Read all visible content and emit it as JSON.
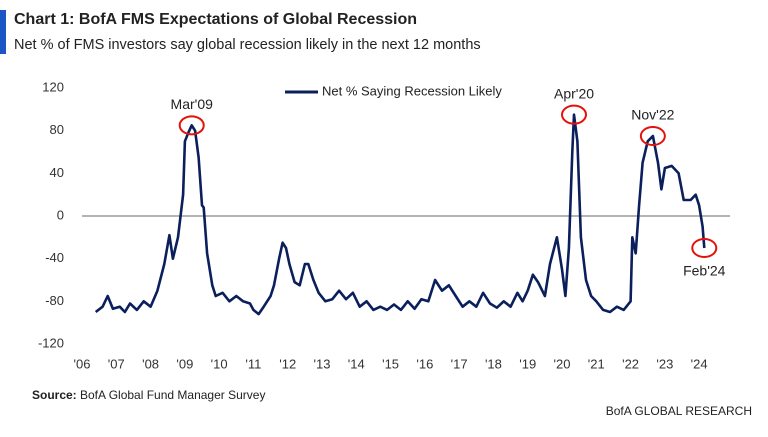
{
  "chart_data": {
    "type": "line",
    "title": "Chart 1: BofA FMS Expectations of Global Recession",
    "subtitle": "Net % of FMS investors say global recession likely in the next 12 months",
    "source_label": "Source:",
    "source": "BofA Global Fund Manager Survey",
    "footer": "BofA GLOBAL RESEARCH",
    "x": [
      2006.4,
      2006.6,
      2006.75,
      2006.9,
      2007.1,
      2007.25,
      2007.4,
      2007.6,
      2007.8,
      2008.0,
      2008.2,
      2008.4,
      2008.55,
      2008.65,
      2008.8,
      2008.95,
      2009.0,
      2009.1,
      2009.2,
      2009.3,
      2009.4,
      2009.5,
      2009.55,
      2009.65,
      2009.8,
      2009.9,
      2010.1,
      2010.3,
      2010.5,
      2010.7,
      2010.9,
      2011.0,
      2011.15,
      2011.3,
      2011.5,
      2011.6,
      2011.75,
      2011.85,
      2011.95,
      2012.05,
      2012.2,
      2012.35,
      2012.5,
      2012.6,
      2012.75,
      2012.9,
      2013.1,
      2013.3,
      2013.5,
      2013.7,
      2013.9,
      2014.1,
      2014.3,
      2014.5,
      2014.7,
      2014.9,
      2015.1,
      2015.3,
      2015.5,
      2015.7,
      2015.9,
      2016.1,
      2016.3,
      2016.5,
      2016.7,
      2016.9,
      2017.1,
      2017.3,
      2017.5,
      2017.7,
      2017.9,
      2018.1,
      2018.3,
      2018.5,
      2018.7,
      2018.85,
      2019.0,
      2019.15,
      2019.3,
      2019.5,
      2019.65,
      2019.85,
      2020.0,
      2020.1,
      2020.2,
      2020.3,
      2020.35,
      2020.45,
      2020.55,
      2020.7,
      2020.85,
      2021.0,
      2021.2,
      2021.4,
      2021.6,
      2021.8,
      2022.0,
      2022.05,
      2022.15,
      2022.25,
      2022.35,
      2022.5,
      2022.65,
      2022.8,
      2022.9,
      2023.0,
      2023.2,
      2023.4,
      2023.55,
      2023.75,
      2023.9,
      2024.0,
      2024.1,
      2024.15
    ],
    "series": [
      {
        "name": "Net % Saying Recession Likely",
        "color": "#0a1f5c",
        "values": [
          -90,
          -85,
          -75,
          -87,
          -85,
          -90,
          -82,
          -88,
          -80,
          -85,
          -70,
          -45,
          -18,
          -40,
          -20,
          20,
          70,
          78,
          85,
          80,
          55,
          10,
          8,
          -35,
          -65,
          -75,
          -72,
          -80,
          -75,
          -80,
          -82,
          -88,
          -92,
          -85,
          -75,
          -65,
          -40,
          -25,
          -30,
          -45,
          -62,
          -65,
          -45,
          -45,
          -60,
          -72,
          -80,
          -78,
          -70,
          -78,
          -72,
          -85,
          -80,
          -88,
          -85,
          -88,
          -83,
          -88,
          -80,
          -87,
          -78,
          -80,
          -60,
          -70,
          -65,
          -75,
          -85,
          -80,
          -85,
          -72,
          -82,
          -86,
          -80,
          -85,
          -72,
          -80,
          -70,
          -55,
          -62,
          -75,
          -45,
          -20,
          -50,
          -75,
          -30,
          60,
          95,
          70,
          -20,
          -60,
          -75,
          -80,
          -88,
          -90,
          -85,
          -88,
          -80,
          -20,
          -35,
          10,
          50,
          70,
          75,
          50,
          25,
          45,
          47,
          40,
          15,
          15,
          20,
          10,
          -10,
          -30
        ]
      }
    ],
    "annotations": [
      {
        "text": "Mar'09",
        "x": 2009.2,
        "y": 85
      },
      {
        "text": "Apr'20",
        "x": 2020.35,
        "y": 95
      },
      {
        "text": "Nov'22",
        "x": 2022.65,
        "y": 75
      },
      {
        "text": "Feb'24",
        "x": 2024.15,
        "y": -30
      }
    ],
    "annotation_color": "#e3120b",
    "xlim": [
      2006,
      2024.9
    ],
    "xticks": [
      {
        "value": 2006,
        "label": "'06"
      },
      {
        "value": 2007,
        "label": "'07"
      },
      {
        "value": 2008,
        "label": "'08"
      },
      {
        "value": 2009,
        "label": "'09"
      },
      {
        "value": 2010,
        "label": "'10"
      },
      {
        "value": 2011,
        "label": "'11"
      },
      {
        "value": 2012,
        "label": "'12"
      },
      {
        "value": 2013,
        "label": "'13"
      },
      {
        "value": 2014,
        "label": "'14"
      },
      {
        "value": 2015,
        "label": "'15"
      },
      {
        "value": 2016,
        "label": "'16"
      },
      {
        "value": 2017,
        "label": "'17"
      },
      {
        "value": 2018,
        "label": "'18"
      },
      {
        "value": 2019,
        "label": "'19"
      },
      {
        "value": 2020,
        "label": "'20"
      },
      {
        "value": 2021,
        "label": "'21"
      },
      {
        "value": 2022,
        "label": "'22"
      },
      {
        "value": 2023,
        "label": "'23"
      },
      {
        "value": 2024,
        "label": "'24"
      }
    ],
    "ylim": [
      -120,
      120
    ],
    "yticks": [
      -120,
      -80,
      -40,
      0,
      40,
      80,
      120
    ],
    "grid": false,
    "legend": "top"
  }
}
